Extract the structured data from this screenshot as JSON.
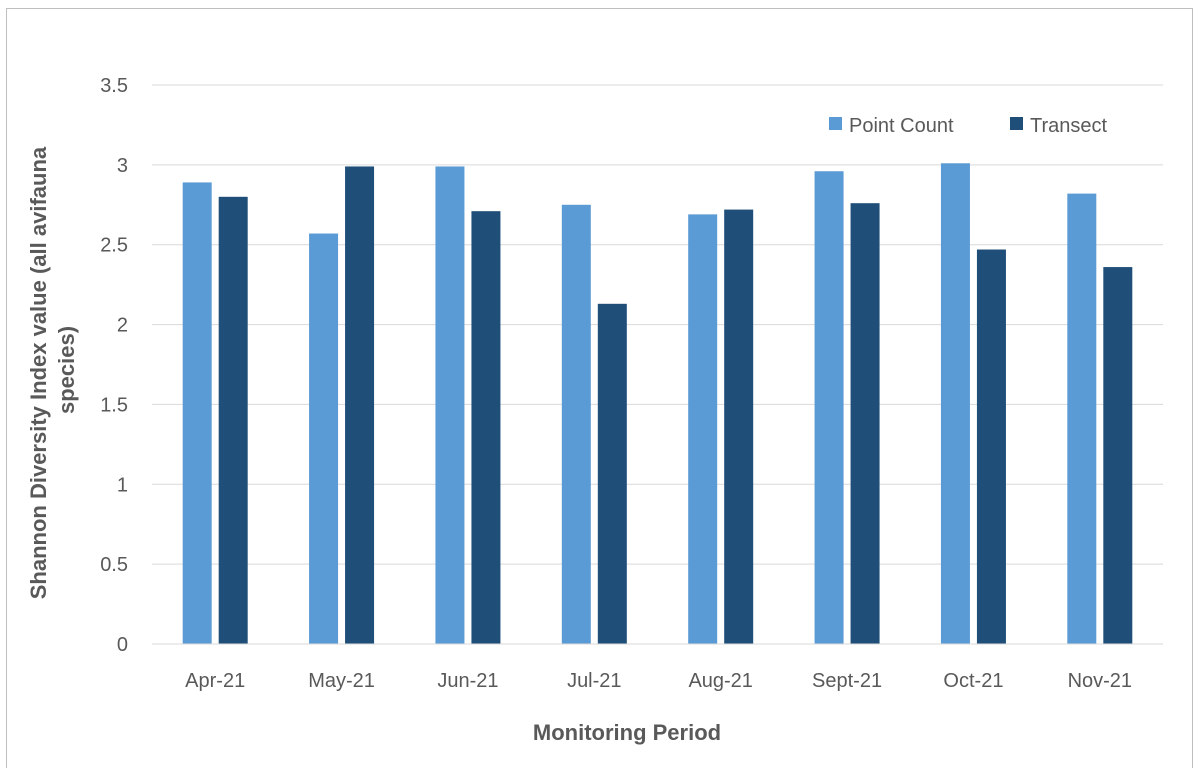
{
  "chart_data": {
    "type": "bar",
    "categories": [
      "Apr-21",
      "May-21",
      "Jun-21",
      "Jul-21",
      "Aug-21",
      "Sept-21",
      "Oct-21",
      "Nov-21"
    ],
    "series": [
      {
        "name": "Point Count",
        "color": "#5b9bd5",
        "values": [
          2.89,
          2.57,
          2.99,
          2.75,
          2.69,
          2.96,
          3.01,
          2.82
        ]
      },
      {
        "name": "Transect",
        "color": "#1f4e79",
        "values": [
          2.8,
          2.99,
          2.71,
          2.13,
          2.72,
          2.76,
          2.47,
          2.36
        ]
      }
    ],
    "xlabel": "Monitoring Period",
    "ylabel_lines": [
      "Shannon Diversity Index value (all avifauna",
      "species)"
    ],
    "ylim": [
      0,
      3.5
    ],
    "yticks": [
      "0",
      "0.5",
      "1",
      "1.5",
      "2",
      "2.5",
      "3",
      "3.5"
    ],
    "ytick_values": [
      0,
      0.5,
      1,
      1.5,
      2,
      2.5,
      3,
      3.5
    ],
    "grid": true,
    "legend_position": "top-right"
  }
}
